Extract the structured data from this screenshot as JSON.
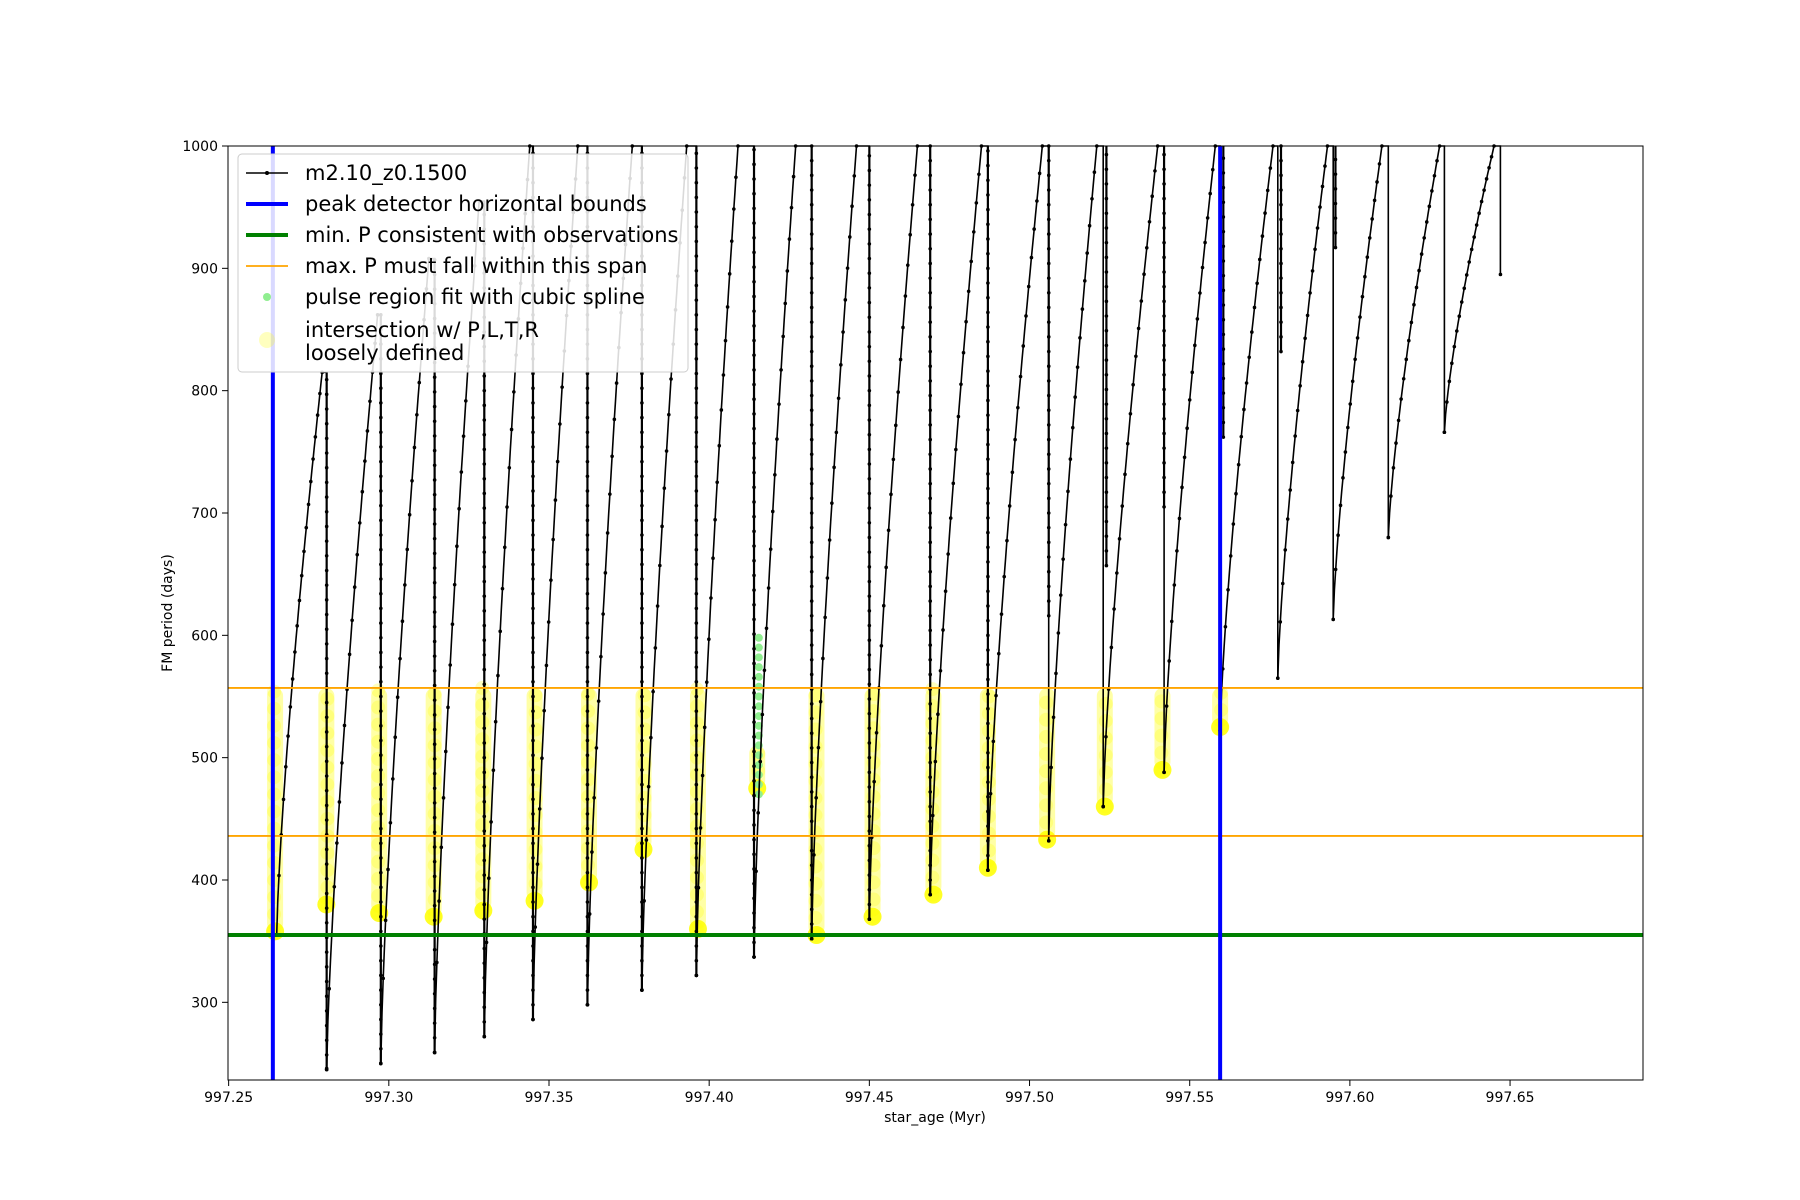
{
  "chart_data": {
    "type": "line",
    "title": "",
    "xlabel": "star_age (Myr)",
    "ylabel": "FM period (days)",
    "xlim": [
      997.2498,
      997.6915
    ],
    "ylim": [
      236.5,
      1000
    ],
    "xticks": [
      "997.25",
      "997.30",
      "997.35",
      "997.40",
      "997.45",
      "997.50",
      "997.55",
      "997.60",
      "997.65"
    ],
    "yticks": [
      "300",
      "400",
      "500",
      "600",
      "700",
      "800",
      "900",
      "1000"
    ],
    "grid": false,
    "legend_position": "top-left",
    "legend": [
      {
        "label": "m2.10_z0.1500",
        "style": "black-line-dots"
      },
      {
        "label": "peak detector horizontal bounds",
        "style": "blue-line"
      },
      {
        "label": "min. P consistent with observations",
        "style": "green-line"
      },
      {
        "label": "max. P must fall within this span",
        "style": "orange-line"
      },
      {
        "label": "pulse region fit with cubic spline",
        "style": "lightgreen-dot"
      },
      {
        "label": "intersection w/ P,L,T,R",
        "label2": "loosely defined",
        "style": "yellow-dot"
      }
    ],
    "colors": {
      "track": "#000000",
      "bounds": "#0000ff",
      "min_p": "#008000",
      "max_p_span": "#ffa500",
      "spline": "#90ee90",
      "intersection": "#ffff00"
    },
    "vertical_bounds": [
      997.2638,
      997.5595
    ],
    "min_period": 355,
    "max_period_span": [
      436,
      557
    ],
    "series": [
      {
        "name": "m2.10_z0.1500",
        "pulses": [
          {
            "start": 997.265,
            "min": 355,
            "bottom": 245,
            "peak": 815,
            "peak_x": 997.2792,
            "end": 997.2806
          },
          {
            "start": 997.2806,
            "min": 246,
            "bottom": 250,
            "peak": 862,
            "peak_x": 997.2965,
            "end": 997.2975
          },
          {
            "start": 997.2975,
            "min": 250,
            "bottom": 259,
            "peak": 908,
            "peak_x": 997.3125,
            "end": 997.3143
          },
          {
            "start": 997.3143,
            "min": 259,
            "bottom": 272,
            "peak": 955,
            "peak_x": 997.3282,
            "end": 997.3298
          },
          {
            "start": 997.3298,
            "min": 272,
            "bottom": 286,
            "peak": 1000,
            "peak_x": 997.344,
            "end": 997.345
          },
          {
            "start": 997.345,
            "min": 286,
            "bottom": 298,
            "peak": 1000,
            "peak_x": 997.359,
            "end": 997.362
          },
          {
            "start": 997.362,
            "min": 298,
            "bottom": 310,
            "peak": 1000,
            "peak_x": 997.376,
            "end": 997.379
          },
          {
            "start": 997.379,
            "min": 310,
            "bottom": 322,
            "peak": 1000,
            "peak_x": 997.393,
            "end": 997.396
          },
          {
            "start": 997.396,
            "min": 322,
            "bottom": 337,
            "peak": 1000,
            "peak_x": 997.409,
            "end": 997.414
          },
          {
            "start": 997.414,
            "min": 337,
            "bottom": 352,
            "peak": 1000,
            "peak_x": 997.427,
            "end": 997.432
          },
          {
            "start": 997.432,
            "min": 352,
            "bottom": 368,
            "peak": 1000,
            "peak_x": 997.446,
            "end": 997.45
          },
          {
            "start": 997.45,
            "min": 368,
            "bottom": 388,
            "peak": 1000,
            "peak_x": 997.465,
            "end": 997.469
          },
          {
            "start": 997.469,
            "min": 388,
            "bottom": 408,
            "peak": 1000,
            "peak_x": 997.485,
            "end": 997.487
          },
          {
            "start": 997.487,
            "min": 408,
            "bottom": 432,
            "peak": 1000,
            "peak_x": 997.504,
            "end": 997.506
          },
          {
            "start": 997.506,
            "min": 432,
            "bottom": 460,
            "peak": 1000,
            "peak_x": 997.521,
            "end": 997.523
          },
          {
            "start": 997.523,
            "min": 460,
            "bottom": 488,
            "peak": 1000,
            "peak_x": 997.54,
            "end": 997.542
          },
          {
            "start": 997.542,
            "min": 488,
            "bottom": 522,
            "peak": 1000,
            "peak_x": 997.558,
            "end": 997.5595
          },
          {
            "start": 997.5595,
            "min": 522,
            "bottom": 565,
            "peak": 1000,
            "peak_x": 997.576,
            "end": 997.5775
          },
          {
            "start": 997.5775,
            "min": 565,
            "bottom": 613,
            "peak": 1000,
            "peak_x": 997.593,
            "end": 997.5948
          },
          {
            "start": 997.5948,
            "min": 613,
            "bottom": 680,
            "peak": 1000,
            "peak_x": 997.61,
            "end": 997.612
          },
          {
            "start": 997.612,
            "min": 680,
            "bottom": 766,
            "peak": 1000,
            "peak_x": 997.628,
            "end": 997.6295
          },
          {
            "start": 997.6295,
            "min": 766,
            "bottom": 895,
            "peak": 1000,
            "peak_x": 997.645,
            "end": 997.647
          }
        ],
        "drop_bottoms": [
          {
            "x": 997.2806,
            "bottom": 245,
            "top": 815
          },
          {
            "x": 997.2975,
            "bottom": 250,
            "top": 862
          },
          {
            "x": 997.3143,
            "bottom": 259,
            "top": 908
          },
          {
            "x": 997.3298,
            "bottom": 272,
            "top": 955
          },
          {
            "x": 997.345,
            "bottom": 286,
            "top": 1000
          },
          {
            "x": 997.362,
            "bottom": 298,
            "top": 1000
          },
          {
            "x": 997.379,
            "bottom": 310,
            "top": 1000
          },
          {
            "x": 997.396,
            "bottom": 322,
            "top": 1000
          },
          {
            "x": 997.414,
            "bottom": 337,
            "top": 1000
          },
          {
            "x": 997.432,
            "bottom": 352,
            "top": 1000
          },
          {
            "x": 997.45,
            "bottom": 368,
            "top": 1000
          },
          {
            "x": 997.469,
            "bottom": 388,
            "top": 1000
          },
          {
            "x": 997.487,
            "bottom": 408,
            "top": 1000
          },
          {
            "x": 997.506,
            "bottom": 616,
            "top": 1000
          },
          {
            "x": 997.524,
            "bottom": 657,
            "top": 1000
          },
          {
            "x": 997.542,
            "bottom": 705,
            "top": 1000
          },
          {
            "x": 997.5605,
            "bottom": 762,
            "top": 1000
          },
          {
            "x": 997.5785,
            "bottom": 832,
            "top": 1000
          },
          {
            "x": 997.5955,
            "bottom": 917,
            "top": 1000
          }
        ]
      }
    ],
    "intersection_columns": [
      {
        "x": 997.2645,
        "lo": 358,
        "hi": 557
      },
      {
        "x": 997.2805,
        "lo": 380,
        "hi": 557
      },
      {
        "x": 997.297,
        "lo": 373,
        "hi": 557
      },
      {
        "x": 997.314,
        "lo": 370,
        "hi": 557
      },
      {
        "x": 997.3295,
        "lo": 375,
        "hi": 557
      },
      {
        "x": 997.3455,
        "lo": 383,
        "hi": 557
      },
      {
        "x": 997.3625,
        "lo": 398,
        "hi": 557
      },
      {
        "x": 997.3795,
        "lo": 425,
        "hi": 557
      },
      {
        "x": 997.3965,
        "lo": 360,
        "hi": 557
      },
      {
        "x": 997.415,
        "lo": 475,
        "hi": 510
      },
      {
        "x": 997.4335,
        "lo": 355,
        "hi": 557
      },
      {
        "x": 997.451,
        "lo": 370,
        "hi": 557
      },
      {
        "x": 997.47,
        "lo": 388,
        "hi": 557
      },
      {
        "x": 997.487,
        "lo": 410,
        "hi": 557
      },
      {
        "x": 997.5055,
        "lo": 433,
        "hi": 557
      },
      {
        "x": 997.5235,
        "lo": 460,
        "hi": 557
      },
      {
        "x": 997.5415,
        "lo": 490,
        "hi": 557
      },
      {
        "x": 997.5595,
        "lo": 525,
        "hi": 557
      }
    ],
    "spline_points": [
      {
        "x": 997.4155,
        "lo": 470,
        "hi": 598
      }
    ]
  }
}
